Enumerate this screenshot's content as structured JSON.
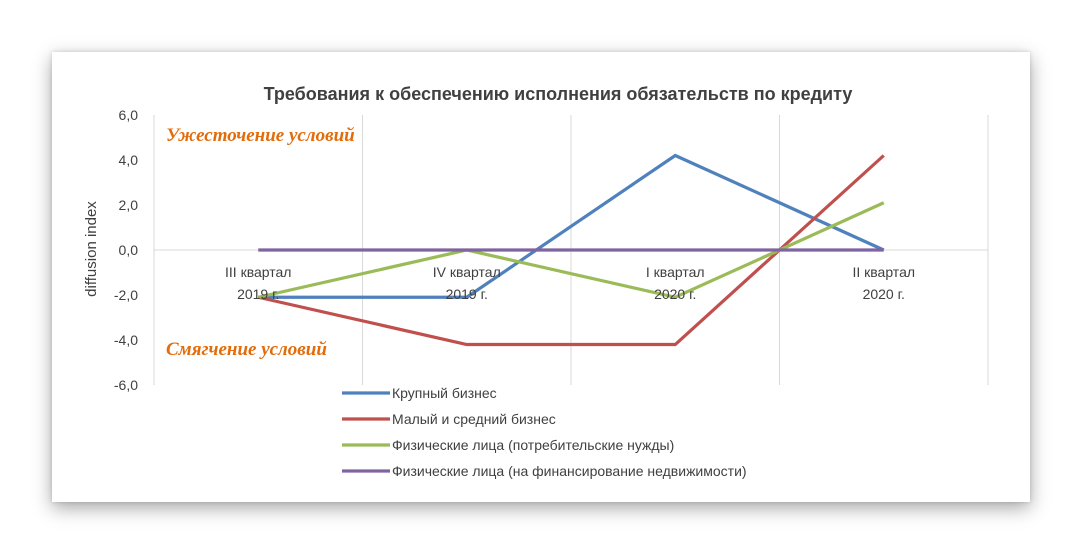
{
  "chart_data": {
    "type": "line",
    "title": "Требования к обеспечению исполнения обязательств по кредиту",
    "xlabel": "",
    "ylabel": "diffusion index",
    "ylim": [
      -6,
      6
    ],
    "y_ticks": [
      "6,0",
      "4,0",
      "2,0",
      "0,0",
      "-2,0",
      "-4,0",
      "-6,0"
    ],
    "categories": [
      [
        "III квартал",
        "2019 г."
      ],
      [
        "IV квартал",
        "2019 г."
      ],
      [
        "I квартал",
        "2020 г."
      ],
      [
        "II квартал",
        "2020 г."
      ]
    ],
    "grid": "vertical",
    "legend_position": "bottom",
    "annotations": {
      "top": "Ужесточение условий",
      "bottom": "Смягчение условий",
      "color": "#e36c0a"
    },
    "series": [
      {
        "name": "Крупный бизнес",
        "values": [
          -2.1,
          -2.1,
          4.2,
          0.0
        ],
        "color": "#4f81bd"
      },
      {
        "name": "Малый и средний бизнес",
        "values": [
          -2.1,
          -4.2,
          -4.2,
          4.2
        ],
        "color": "#c0504d"
      },
      {
        "name": "Физические лица (потребительские нужды)",
        "values": [
          -2.1,
          0.0,
          -2.1,
          2.1
        ],
        "color": "#9bbb59"
      },
      {
        "name": "Физические лица (на финансирование недвижимости)",
        "values": [
          0.0,
          0.0,
          0.0,
          0.0
        ],
        "color": "#8064a2"
      }
    ]
  }
}
